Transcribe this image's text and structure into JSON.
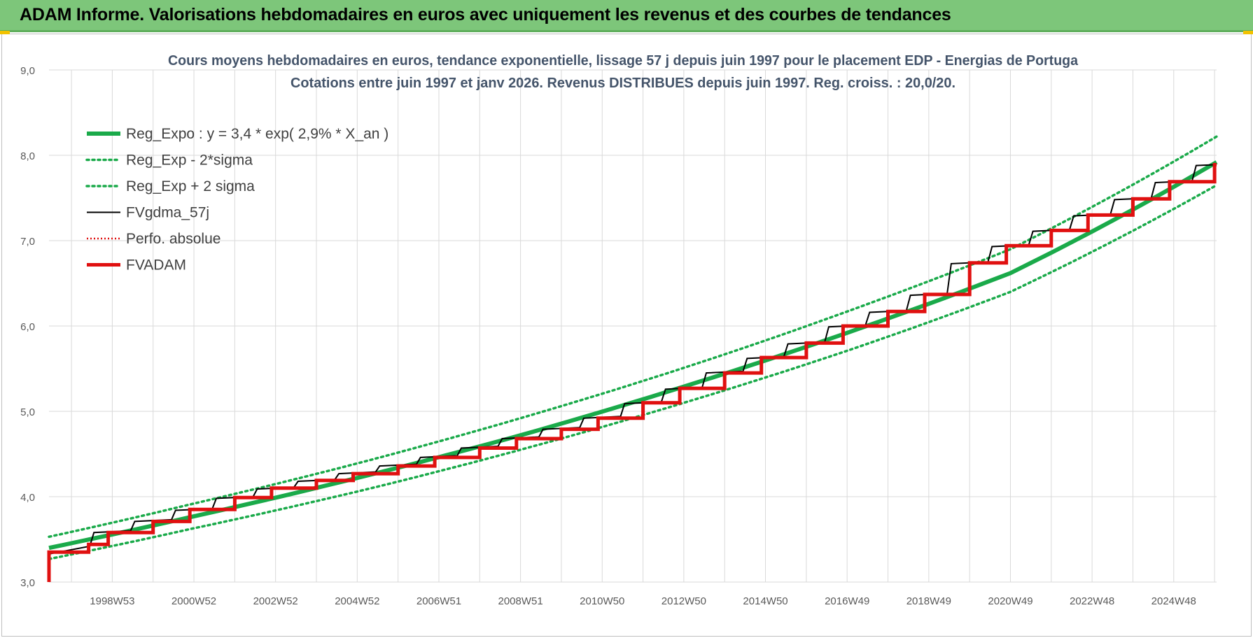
{
  "page": {
    "banner_title": "ADAM Informe. Valorisations hebdomadaires en euros avec uniquement les revenus et des courbes de tendances"
  },
  "colors": {
    "banner_bg": "#7dc67a",
    "green": "#1aaa4a",
    "black": "#000000",
    "red": "#e01010",
    "grid": "#d9d9d9"
  },
  "chart_data": {
    "type": "line",
    "title_line1": "Cours moyens hebdomadaires en euros, tendance exponentielle, lissage 57 j depuis juin 1997 pour le placement EDP - Energias de Portuga",
    "title_line2": "Cotations entre juin 1997 et janv 2026. Revenus DISTRIBUES depuis juin 1997. Reg. croiss. : 20,0/20.",
    "ylim": [
      3.0,
      9.0
    ],
    "yticks": [
      "3,0",
      "4,0",
      "5,0",
      "6,0",
      "7,0",
      "8,0",
      "9,0"
    ],
    "xlim": [
      1997.45,
      2026.05
    ],
    "xticks": [
      {
        "label": "1998W53",
        "x": 1999.0
      },
      {
        "label": "2000W52",
        "x": 2001.0
      },
      {
        "label": "2002W52",
        "x": 2003.0
      },
      {
        "label": "2004W52",
        "x": 2005.0
      },
      {
        "label": "2006W51",
        "x": 2007.0
      },
      {
        "label": "2008W51",
        "x": 2009.0
      },
      {
        "label": "2010W50",
        "x": 2011.0
      },
      {
        "label": "2012W50",
        "x": 2013.0
      },
      {
        "label": "2014W50",
        "x": 2015.0
      },
      {
        "label": "2016W49",
        "x": 2017.0
      },
      {
        "label": "2018W49",
        "x": 2019.0
      },
      {
        "label": "2020W49",
        "x": 2021.0
      },
      {
        "label": "2022W48",
        "x": 2023.0
      },
      {
        "label": "2024W48",
        "x": 2025.0
      }
    ],
    "legend_position": "top-left",
    "grid": true,
    "series": [
      {
        "name": "Reg_Expo : y = 3,4 * exp( 2,9% *  X_an )",
        "style": "solid-thick",
        "color": "#1aaa4a",
        "points": [
          [
            1997.45,
            3.4
          ],
          [
            2001.0,
            3.77
          ],
          [
            2005.0,
            4.22
          ],
          [
            2009.0,
            4.72
          ],
          [
            2013.0,
            5.29
          ],
          [
            2017.0,
            5.92
          ],
          [
            2021.0,
            6.62
          ],
          [
            2026.05,
            7.92
          ]
        ]
      },
      {
        "name": "Reg_Exp - 2*sigma",
        "style": "dotted",
        "color": "#1aaa4a",
        "points": [
          [
            1997.45,
            3.27
          ],
          [
            2001.0,
            3.63
          ],
          [
            2005.0,
            4.06
          ],
          [
            2009.0,
            4.55
          ],
          [
            2013.0,
            5.1
          ],
          [
            2017.0,
            5.71
          ],
          [
            2021.0,
            6.4
          ],
          [
            2026.05,
            7.65
          ]
        ]
      },
      {
        "name": "Reg_Exp + 2 sigma",
        "style": "dotted",
        "color": "#1aaa4a",
        "points": [
          [
            1997.45,
            3.53
          ],
          [
            2001.0,
            3.92
          ],
          [
            2005.0,
            4.39
          ],
          [
            2009.0,
            4.92
          ],
          [
            2013.0,
            5.51
          ],
          [
            2017.0,
            6.17
          ],
          [
            2021.0,
            6.9
          ],
          [
            2026.05,
            8.22
          ]
        ]
      },
      {
        "name": "FVgdma_57j",
        "style": "solid-thin",
        "color": "#000000",
        "points": [
          [
            1997.45,
            3.0
          ],
          [
            1997.47,
            3.33
          ],
          [
            1998.45,
            3.42
          ],
          [
            1998.55,
            3.58
          ],
          [
            1999.45,
            3.6
          ],
          [
            1999.55,
            3.71
          ],
          [
            2000.45,
            3.73
          ],
          [
            2000.55,
            3.84
          ],
          [
            2001.45,
            3.86
          ],
          [
            2001.55,
            3.98
          ],
          [
            2002.45,
            4.0
          ],
          [
            2002.55,
            4.09
          ],
          [
            2003.45,
            4.11
          ],
          [
            2003.55,
            4.18
          ],
          [
            2004.45,
            4.2
          ],
          [
            2004.55,
            4.27
          ],
          [
            2005.45,
            4.29
          ],
          [
            2005.55,
            4.36
          ],
          [
            2006.45,
            4.38
          ],
          [
            2006.55,
            4.46
          ],
          [
            2007.45,
            4.48
          ],
          [
            2007.55,
            4.57
          ],
          [
            2008.45,
            4.59
          ],
          [
            2008.55,
            4.68
          ],
          [
            2009.45,
            4.7
          ],
          [
            2009.55,
            4.79
          ],
          [
            2010.45,
            4.81
          ],
          [
            2010.55,
            4.92
          ],
          [
            2011.45,
            4.94
          ],
          [
            2011.55,
            5.09
          ],
          [
            2012.45,
            5.11
          ],
          [
            2012.55,
            5.26
          ],
          [
            2013.45,
            5.28
          ],
          [
            2013.55,
            5.45
          ],
          [
            2014.45,
            5.47
          ],
          [
            2014.55,
            5.62
          ],
          [
            2015.45,
            5.64
          ],
          [
            2015.55,
            5.79
          ],
          [
            2016.45,
            5.81
          ],
          [
            2016.55,
            5.99
          ],
          [
            2017.45,
            6.01
          ],
          [
            2017.55,
            6.16
          ],
          [
            2018.45,
            6.18
          ],
          [
            2018.55,
            6.36
          ],
          [
            2019.45,
            6.38
          ],
          [
            2019.55,
            6.73
          ],
          [
            2020.45,
            6.75
          ],
          [
            2020.55,
            6.93
          ],
          [
            2021.45,
            6.95
          ],
          [
            2021.55,
            7.11
          ],
          [
            2022.45,
            7.13
          ],
          [
            2022.55,
            7.29
          ],
          [
            2023.45,
            7.31
          ],
          [
            2023.55,
            7.48
          ],
          [
            2024.45,
            7.5
          ],
          [
            2024.55,
            7.68
          ],
          [
            2025.45,
            7.7
          ],
          [
            2025.55,
            7.88
          ],
          [
            2026.05,
            7.89
          ]
        ]
      },
      {
        "name": "Perfo. absolue",
        "style": "dotted-red",
        "color": "#e01010",
        "points": []
      },
      {
        "name": "FVADAM",
        "style": "step-thick",
        "color": "#e01010",
        "points": [
          [
            1997.45,
            3.0
          ],
          [
            1997.45,
            3.35
          ],
          [
            1998.42,
            3.35
          ],
          [
            1998.42,
            3.44
          ],
          [
            1998.9,
            3.44
          ],
          [
            1998.9,
            3.58
          ],
          [
            2000.0,
            3.58
          ],
          [
            2000.0,
            3.71
          ],
          [
            2000.9,
            3.71
          ],
          [
            2000.9,
            3.85
          ],
          [
            2002.0,
            3.85
          ],
          [
            2002.0,
            3.99
          ],
          [
            2002.9,
            3.99
          ],
          [
            2002.9,
            4.1
          ],
          [
            2004.0,
            4.1
          ],
          [
            2004.0,
            4.19
          ],
          [
            2004.9,
            4.19
          ],
          [
            2004.9,
            4.27
          ],
          [
            2006.0,
            4.27
          ],
          [
            2006.0,
            4.36
          ],
          [
            2006.9,
            4.36
          ],
          [
            2006.9,
            4.46
          ],
          [
            2008.0,
            4.46
          ],
          [
            2008.0,
            4.57
          ],
          [
            2008.9,
            4.57
          ],
          [
            2008.9,
            4.68
          ],
          [
            2010.0,
            4.68
          ],
          [
            2010.0,
            4.79
          ],
          [
            2010.9,
            4.79
          ],
          [
            2010.9,
            4.92
          ],
          [
            2012.0,
            4.92
          ],
          [
            2012.0,
            5.1
          ],
          [
            2012.9,
            5.1
          ],
          [
            2012.9,
            5.27
          ],
          [
            2014.0,
            5.27
          ],
          [
            2014.0,
            5.45
          ],
          [
            2014.9,
            5.45
          ],
          [
            2014.9,
            5.63
          ],
          [
            2016.0,
            5.63
          ],
          [
            2016.0,
            5.8
          ],
          [
            2016.9,
            5.8
          ],
          [
            2016.9,
            6.0
          ],
          [
            2018.0,
            6.0
          ],
          [
            2018.0,
            6.17
          ],
          [
            2018.9,
            6.17
          ],
          [
            2018.9,
            6.37
          ],
          [
            2020.0,
            6.37
          ],
          [
            2020.0,
            6.74
          ],
          [
            2020.9,
            6.74
          ],
          [
            2020.9,
            6.94
          ],
          [
            2022.0,
            6.94
          ],
          [
            2022.0,
            7.12
          ],
          [
            2022.9,
            7.12
          ],
          [
            2022.9,
            7.3
          ],
          [
            2024.0,
            7.3
          ],
          [
            2024.0,
            7.49
          ],
          [
            2024.9,
            7.49
          ],
          [
            2024.9,
            7.69
          ],
          [
            2026.0,
            7.69
          ],
          [
            2026.0,
            7.89
          ],
          [
            2026.05,
            7.89
          ]
        ]
      }
    ]
  }
}
